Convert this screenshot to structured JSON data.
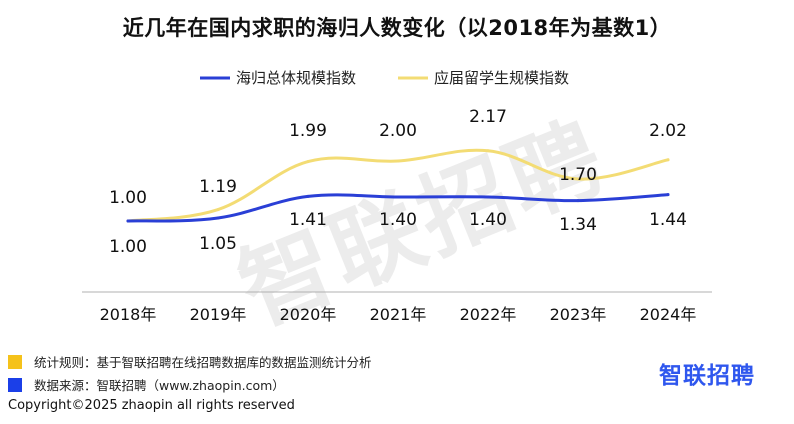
{
  "chart_data": {
    "type": "line",
    "title": "近几年在国内求职的海归人数变化（以2018年为基数1）",
    "categories": [
      "2018年",
      "2019年",
      "2020年",
      "2021年",
      "2022年",
      "2023年",
      "2024年"
    ],
    "series": [
      {
        "name": "海归总体规模指数",
        "values": [
          1.0,
          1.05,
          1.41,
          1.4,
          1.4,
          1.34,
          1.44
        ],
        "color": "#2a3fd6"
      },
      {
        "name": "应届留学生规模指数",
        "values": [
          1.0,
          1.19,
          1.99,
          2.0,
          2.17,
          1.7,
          2.02
        ],
        "color": "#f3dc74"
      }
    ],
    "value_labels": {
      "blue": [
        "1.00",
        "1.05",
        "1.41",
        "1.40",
        "1.40",
        "1.34",
        "1.44"
      ],
      "yellow": [
        "1.00",
        "1.19",
        "1.99",
        "2.00",
        "2.17",
        "1.70",
        "2.02"
      ]
    },
    "legend_position": "top-center",
    "grid": false
  },
  "footnotes": [
    {
      "text": "统计规则：基于智联招聘在线招聘数据库的数据监测统计分析",
      "color": "#f5c21a"
    },
    {
      "text": "数据来源：智联招聘（www.zhaopin.com）",
      "color": "#1b3fe8"
    }
  ],
  "brand": "智联招聘",
  "watermark": "智联招聘",
  "copyright": "Copyright©2025 zhaopin all rights reserved"
}
